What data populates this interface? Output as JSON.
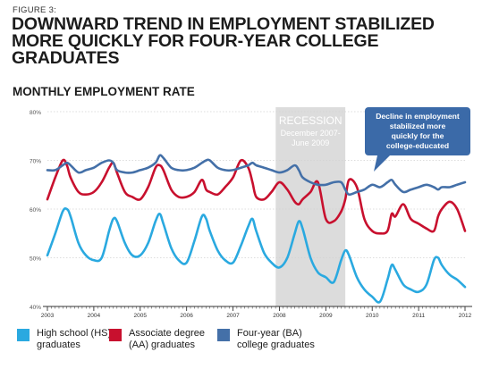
{
  "figure_label": "FIGURE 3:",
  "title": "DOWNWARD TREND IN EMPLOYMENT STABILIZED MORE QUICKLY FOR FOUR-YEAR COLLEGE GRADUATES",
  "subtitle": "MONTHLY EMPLOYMENT RATE",
  "recession": {
    "label": "RECESSION",
    "dates": "December 2007-June 2009",
    "start": 2007.92,
    "end": 2009.42,
    "color": "#dcdcdc"
  },
  "callout": {
    "text": "Decline in employment stabilized more quickly for the college-educated",
    "color": "#3b6aa8"
  },
  "colors": {
    "hs": "#2aa9e0",
    "aa": "#c8102e",
    "ba": "#4470a8",
    "grid": "#d2d2d2",
    "axis": "#333333"
  },
  "chart_data": {
    "type": "line",
    "xlabel": "",
    "ylabel": "",
    "xlim": [
      2003.0,
      2012.0
    ],
    "ylim": [
      40,
      80
    ],
    "yticks": [
      "40%",
      "50%",
      "60%",
      "70%",
      "80%"
    ],
    "ytick_values": [
      40,
      50,
      60,
      70,
      80
    ],
    "xticks": [
      "2003",
      "2004",
      "2005",
      "2006",
      "2007",
      "2008",
      "2009",
      "2010",
      "2011",
      "2012"
    ],
    "xtick_values": [
      2003,
      2004,
      2005,
      2006,
      2007,
      2008,
      2009,
      2010,
      2011,
      2012
    ],
    "grid": true,
    "legend_position": "bottom",
    "series": [
      {
        "key": "hs",
        "name": "High school (HS) graduates",
        "x": [
          2003.0,
          2003.17,
          2003.33,
          2003.42,
          2003.5,
          2003.67,
          2003.83,
          2004.0,
          2004.17,
          2004.33,
          2004.42,
          2004.5,
          2004.67,
          2004.83,
          2005.0,
          2005.17,
          2005.33,
          2005.42,
          2005.5,
          2005.67,
          2005.83,
          2006.0,
          2006.17,
          2006.33,
          2006.42,
          2006.5,
          2006.67,
          2006.83,
          2007.0,
          2007.17,
          2007.33,
          2007.42,
          2007.5,
          2007.67,
          2007.83,
          2008.0,
          2008.17,
          2008.33,
          2008.42,
          2008.5,
          2008.67,
          2008.83,
          2009.0,
          2009.17,
          2009.33,
          2009.42,
          2009.5,
          2009.67,
          2009.83,
          2010.0,
          2010.17,
          2010.33,
          2010.42,
          2010.5,
          2010.67,
          2010.83,
          2011.0,
          2011.17,
          2011.33,
          2011.42,
          2011.5,
          2011.67,
          2011.83,
          2012.0
        ],
        "y": [
          50.5,
          55.0,
          59.5,
          60.0,
          58.5,
          53.0,
          50.5,
          49.5,
          50.0,
          55.5,
          58.0,
          57.5,
          53.0,
          50.5,
          50.5,
          53.0,
          57.5,
          59.0,
          57.0,
          52.0,
          49.5,
          49.0,
          53.5,
          58.5,
          58.0,
          55.5,
          51.5,
          49.5,
          49.0,
          52.5,
          56.5,
          58.0,
          55.5,
          51.0,
          49.0,
          48.0,
          50.0,
          55.0,
          57.5,
          56.0,
          50.0,
          47.0,
          46.0,
          45.0,
          49.5,
          51.5,
          50.5,
          46.0,
          43.5,
          42.0,
          41.0,
          45.5,
          48.5,
          47.5,
          44.5,
          43.5,
          43.0,
          44.5,
          49.5,
          50.0,
          48.5,
          46.5,
          45.5,
          44.0
        ]
      },
      {
        "key": "aa",
        "name": "Associate degree (AA) graduates",
        "x": [
          2003.0,
          2003.17,
          2003.33,
          2003.42,
          2003.5,
          2003.67,
          2003.83,
          2004.0,
          2004.17,
          2004.33,
          2004.42,
          2004.5,
          2004.67,
          2004.83,
          2005.0,
          2005.17,
          2005.33,
          2005.42,
          2005.5,
          2005.67,
          2005.83,
          2006.0,
          2006.17,
          2006.33,
          2006.42,
          2006.5,
          2006.67,
          2006.83,
          2007.0,
          2007.17,
          2007.33,
          2007.42,
          2007.5,
          2007.67,
          2007.83,
          2008.0,
          2008.17,
          2008.33,
          2008.42,
          2008.5,
          2008.67,
          2008.83,
          2009.0,
          2009.17,
          2009.33,
          2009.42,
          2009.5,
          2009.67,
          2009.83,
          2010.0,
          2010.17,
          2010.33,
          2010.42,
          2010.5,
          2010.67,
          2010.83,
          2011.0,
          2011.17,
          2011.33,
          2011.42,
          2011.5,
          2011.67,
          2011.83,
          2012.0
        ],
        "y": [
          62.0,
          66.5,
          70.0,
          69.0,
          66.5,
          63.5,
          63.0,
          63.5,
          65.5,
          68.5,
          69.5,
          67.5,
          63.5,
          62.5,
          62.0,
          64.5,
          68.5,
          69.0,
          68.0,
          64.0,
          62.5,
          62.5,
          63.5,
          66.0,
          64.0,
          63.5,
          63.0,
          64.5,
          66.5,
          70.0,
          68.5,
          65.5,
          62.5,
          62.0,
          63.5,
          65.5,
          64.0,
          61.5,
          61.0,
          62.0,
          63.5,
          65.5,
          58.0,
          57.5,
          59.5,
          62.0,
          66.0,
          64.5,
          58.0,
          55.5,
          55.0,
          55.5,
          59.0,
          58.5,
          61.0,
          58.0,
          57.0,
          56.0,
          55.5,
          58.5,
          60.0,
          61.5,
          60.0,
          55.5
        ]
      },
      {
        "key": "ba",
        "name": "Four-year (BA) college graduates",
        "x": [
          2003.0,
          2003.17,
          2003.33,
          2003.42,
          2003.5,
          2003.67,
          2003.83,
          2004.0,
          2004.17,
          2004.33,
          2004.42,
          2004.5,
          2004.67,
          2004.83,
          2005.0,
          2005.17,
          2005.33,
          2005.42,
          2005.5,
          2005.67,
          2005.83,
          2006.0,
          2006.17,
          2006.33,
          2006.42,
          2006.5,
          2006.67,
          2006.83,
          2007.0,
          2007.17,
          2007.33,
          2007.42,
          2007.5,
          2007.67,
          2007.83,
          2008.0,
          2008.17,
          2008.33,
          2008.42,
          2008.5,
          2008.67,
          2008.83,
          2009.0,
          2009.17,
          2009.33,
          2009.42,
          2009.5,
          2009.67,
          2009.83,
          2010.0,
          2010.17,
          2010.33,
          2010.42,
          2010.5,
          2010.67,
          2010.83,
          2011.0,
          2011.17,
          2011.33,
          2011.42,
          2011.5,
          2011.67,
          2011.83,
          2012.0
        ],
        "y": [
          68.0,
          68.0,
          69.0,
          69.5,
          69.0,
          67.5,
          68.0,
          68.5,
          69.5,
          70.0,
          69.5,
          68.0,
          67.5,
          67.5,
          68.0,
          68.5,
          69.5,
          71.0,
          70.5,
          68.5,
          68.0,
          68.0,
          68.5,
          69.5,
          70.0,
          70.0,
          68.5,
          68.0,
          68.0,
          68.5,
          69.0,
          69.5,
          69.0,
          68.5,
          68.0,
          67.5,
          68.0,
          69.0,
          68.0,
          66.5,
          65.5,
          65.0,
          65.0,
          65.5,
          65.5,
          64.0,
          63.0,
          63.5,
          64.0,
          65.0,
          64.5,
          65.5,
          66.0,
          65.0,
          63.5,
          64.0,
          64.5,
          65.0,
          64.5,
          64.0,
          64.5,
          64.5,
          65.0,
          65.5
        ]
      }
    ]
  }
}
